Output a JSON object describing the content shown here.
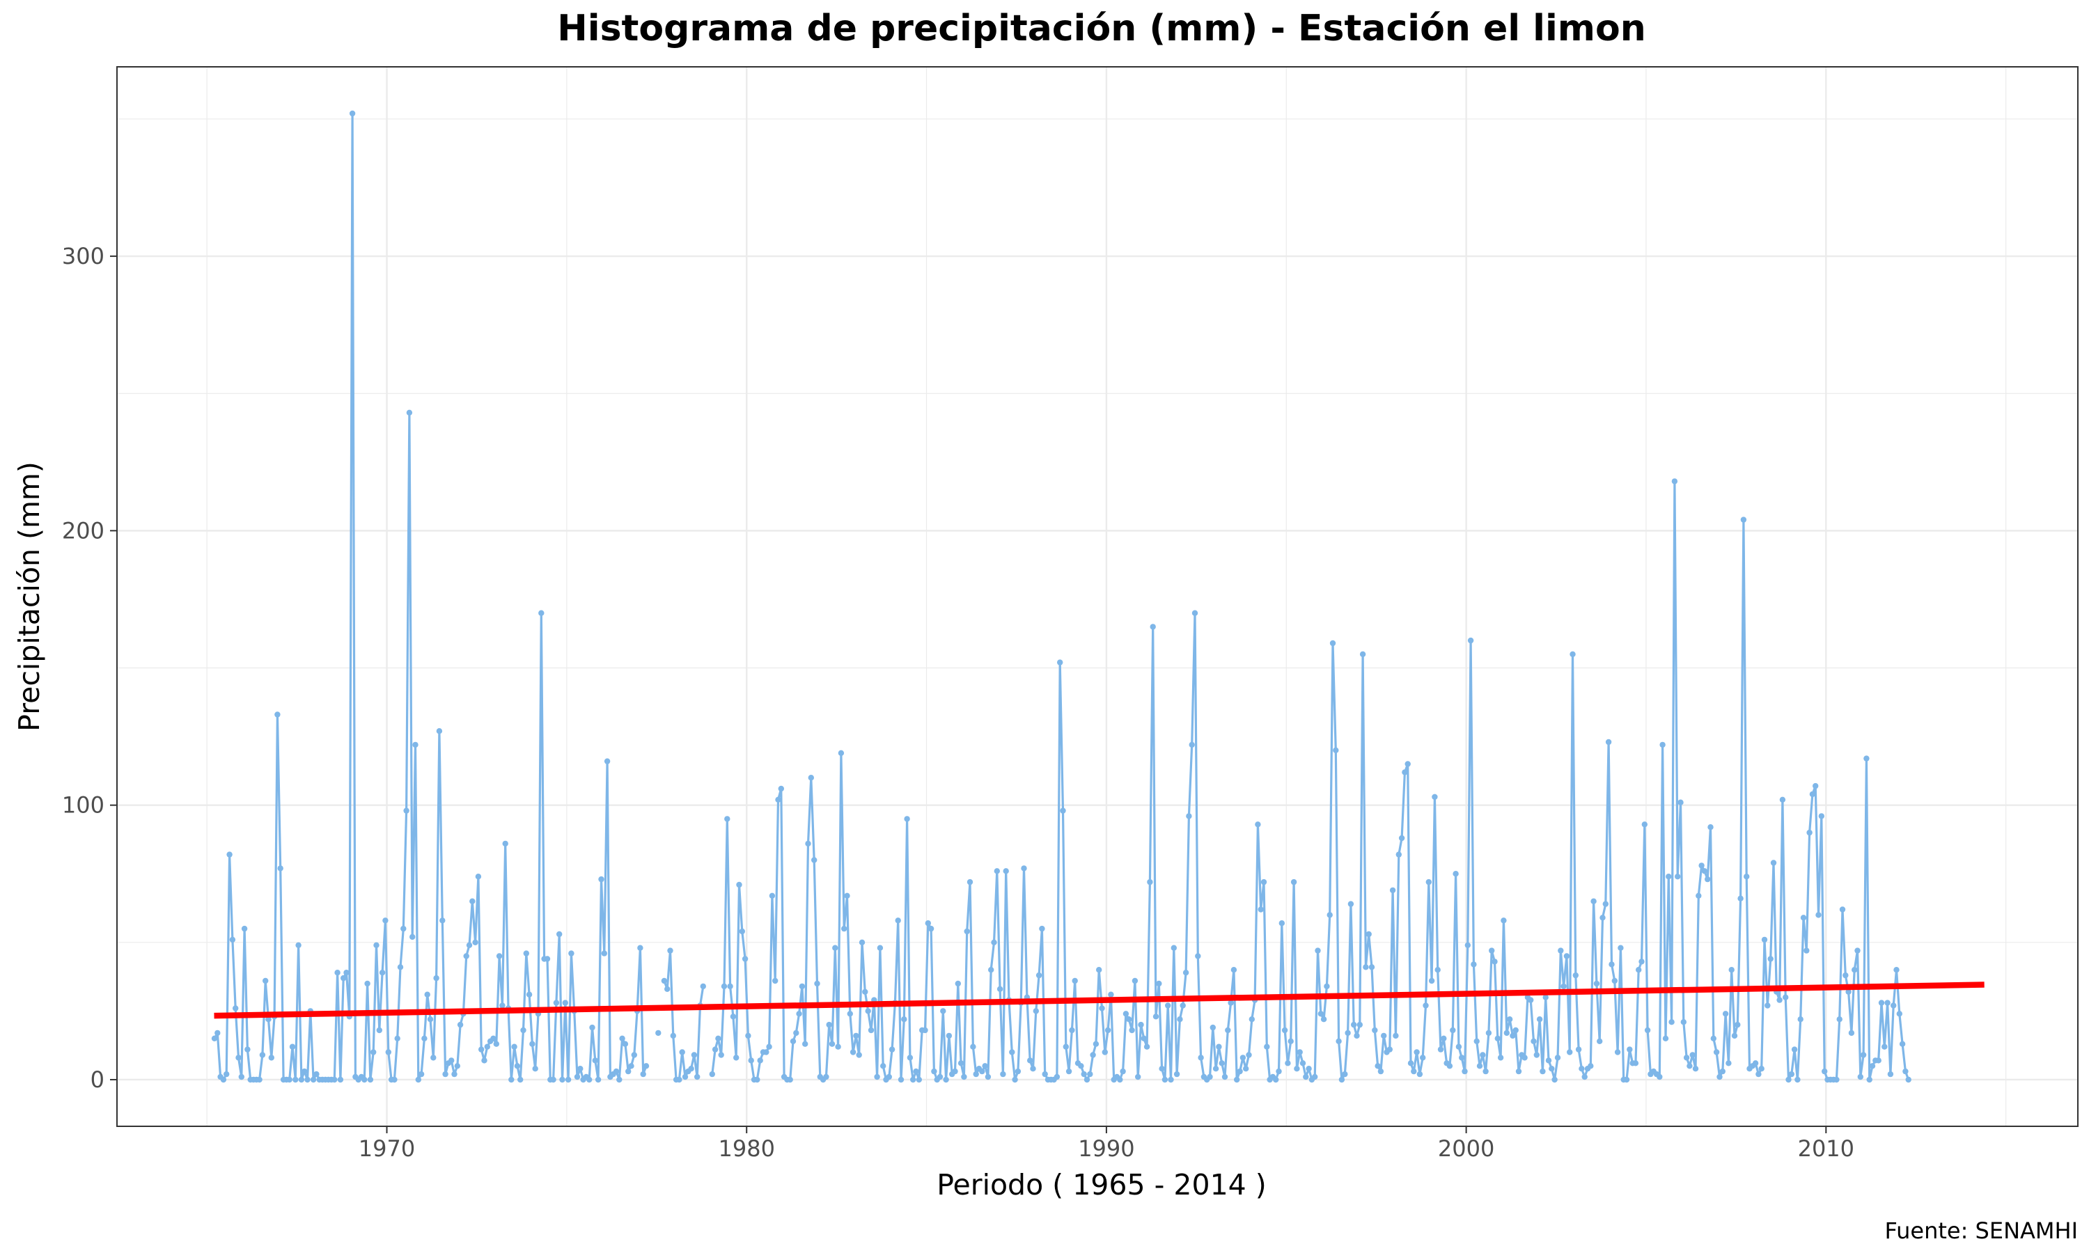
{
  "chart_data": {
    "type": "line",
    "title": "Histograma de precipitación (mm) - Estación el limon",
    "xlabel": "Periodo ( 1965 - 2014 )",
    "ylabel": "Precipitación (mm)",
    "caption": "Fuente: SENAMHI",
    "xlim": [
      1962.5,
      2017.0
    ],
    "ylim": [
      -17.0,
      369.0
    ],
    "x_ticks": [
      1970,
      1980,
      1990,
      2000,
      2010
    ],
    "x_tick_labels": [
      "1970",
      "1980",
      "1990",
      "2000",
      "2010"
    ],
    "y_ticks": [
      0,
      100,
      200,
      300
    ],
    "y_tick_labels": [
      "0",
      "100",
      "200",
      "300"
    ],
    "grid": true,
    "series": [
      {
        "kind": "points-and-line",
        "color": "#7eb6e8",
        "x_start": 1965.21,
        "x_step": 0.08333,
        "values": [
          15,
          17,
          1,
          0,
          2,
          82,
          51,
          26,
          8,
          1,
          55,
          11,
          0,
          0,
          0,
          0,
          9,
          36,
          22,
          8,
          23,
          133,
          77,
          0,
          0,
          0,
          12,
          0,
          49,
          0,
          3,
          0,
          25,
          0,
          2,
          0,
          0,
          0,
          0,
          0,
          0,
          39,
          0,
          37,
          39,
          23,
          352,
          1,
          0,
          1,
          0,
          35,
          0,
          10,
          49,
          18,
          39,
          58,
          10,
          0,
          0,
          15,
          41,
          55,
          98,
          243,
          52,
          122,
          0,
          2,
          15,
          31,
          22,
          8,
          37,
          127,
          58,
          2,
          6,
          7,
          2,
          5,
          20,
          24,
          45,
          49,
          65,
          50,
          74,
          11,
          7,
          12,
          14,
          15,
          13,
          45,
          27,
          86,
          26,
          0,
          12,
          5,
          0,
          18,
          46,
          31,
          13,
          4,
          24,
          170,
          44,
          44,
          0,
          0,
          28,
          53,
          0,
          28,
          0,
          46,
          25,
          1,
          4,
          0,
          1,
          0,
          19,
          7,
          0,
          73,
          46,
          116,
          1,
          2,
          3,
          0,
          15,
          13,
          3,
          5,
          9,
          25,
          48,
          2,
          5,
          null,
          null,
          null,
          17,
          null,
          36,
          33,
          47,
          16,
          0,
          0,
          10,
          1,
          3,
          4,
          9,
          1,
          27,
          34,
          null,
          null,
          2,
          11,
          15,
          9,
          34,
          95,
          34,
          23,
          8,
          71,
          54,
          44,
          16,
          7,
          0,
          0,
          7,
          10,
          10,
          12,
          67,
          36,
          102,
          106,
          1,
          0,
          0,
          14,
          17,
          24,
          34,
          13,
          86,
          110,
          80,
          35,
          1,
          0,
          1,
          20,
          13,
          48,
          12,
          119,
          55,
          67,
          24,
          10,
          16,
          9,
          50,
          32,
          25,
          18,
          29,
          1,
          48,
          5,
          0,
          1,
          11,
          28,
          58,
          0,
          22,
          95,
          8,
          0,
          3,
          0,
          18,
          18,
          57,
          55,
          3,
          0,
          1,
          25,
          0,
          16,
          2,
          3,
          35,
          6,
          1,
          54,
          72,
          12,
          2,
          4,
          3,
          5,
          1,
          40,
          50,
          76,
          33,
          2,
          76,
          29,
          10,
          0,
          3,
          28,
          77,
          30,
          7,
          4,
          25,
          38,
          55,
          2,
          0,
          0,
          0,
          1,
          152,
          98,
          12,
          3,
          18,
          36,
          6,
          5,
          2,
          0,
          2,
          9,
          13,
          40,
          26,
          10,
          18,
          31,
          0,
          1,
          0,
          3,
          24,
          22,
          18,
          36,
          1,
          20,
          15,
          12,
          72,
          165,
          23,
          35,
          4,
          0,
          27,
          0,
          48,
          2,
          22,
          27,
          39,
          96,
          122,
          170,
          45,
          8,
          1,
          0,
          1,
          19,
          4,
          12,
          6,
          1,
          18,
          28,
          40,
          0,
          3,
          8,
          4,
          9,
          22,
          29,
          93,
          62,
          72,
          12,
          0,
          1,
          0,
          3,
          57,
          18,
          6,
          14,
          72,
          4,
          10,
          6,
          1,
          4,
          0,
          1,
          47,
          24,
          22,
          34,
          60,
          159,
          120,
          14,
          0,
          2,
          17,
          64,
          20,
          16,
          20,
          155,
          41,
          53,
          41,
          18,
          5,
          3,
          16,
          10,
          11,
          69,
          16,
          82,
          88,
          112,
          115,
          6,
          3,
          10,
          2,
          8,
          27,
          72,
          36,
          103,
          40,
          11,
          15,
          6,
          5,
          18,
          75,
          12,
          8,
          3,
          49,
          160,
          42,
          14,
          5,
          9,
          3,
          17,
          47,
          43,
          15,
          8,
          58,
          17,
          22,
          16,
          18,
          3,
          9,
          8,
          30,
          29,
          14,
          9,
          22,
          3,
          30,
          7,
          4,
          0,
          8,
          47,
          34,
          45,
          10,
          155,
          38,
          11,
          4,
          1,
          4,
          5,
          65,
          35,
          14,
          59,
          64,
          123,
          42,
          36,
          10,
          48,
          0,
          0,
          11,
          6,
          6,
          40,
          43,
          93,
          18,
          2,
          3,
          2,
          1,
          122,
          15,
          74,
          21,
          218,
          74,
          101,
          21,
          8,
          5,
          9,
          4,
          67,
          78,
          76,
          73,
          92,
          15,
          10,
          1,
          3,
          24,
          6,
          40,
          16,
          20,
          66,
          204,
          74,
          4,
          5,
          6,
          2,
          4,
          51,
          27,
          44,
          79,
          32,
          29,
          102,
          30,
          0,
          2,
          11,
          0,
          22,
          59,
          47,
          90,
          104,
          107,
          60,
          96,
          3,
          0,
          0,
          0,
          0,
          22,
          62,
          38,
          32,
          17,
          40,
          47,
          1,
          9,
          117,
          0,
          5,
          7,
          7,
          28,
          12,
          28,
          2,
          27,
          40,
          24,
          13,
          3,
          0
        ]
      },
      {
        "kind": "trend-line",
        "color": "#ff0000",
        "x": [
          1965.2,
          2014.4
        ],
        "y": [
          23.3,
          34.6
        ]
      }
    ]
  }
}
